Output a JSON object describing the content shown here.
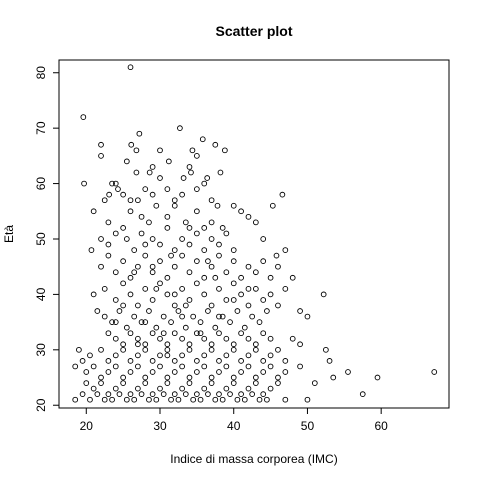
{
  "chart_data": {
    "type": "scatter",
    "title": "Scatter plot",
    "xlabel": "Indice di massa corporea (IMC)",
    "ylabel": "Età",
    "xlim": [
      16.3,
      69.2
    ],
    "ylim": [
      19.5,
      82.3
    ],
    "xticks": [
      20,
      30,
      40,
      50,
      60
    ],
    "yticks": [
      20,
      30,
      40,
      50,
      60,
      70,
      80
    ],
    "grid": false,
    "marker": "open-circle",
    "point_color": "#000000",
    "points": [
      [
        26,
        81
      ],
      [
        19.6,
        72
      ],
      [
        22,
        67
      ],
      [
        27.2,
        69
      ],
      [
        32.7,
        70
      ],
      [
        22,
        65
      ],
      [
        26.1,
        67
      ],
      [
        30,
        66
      ],
      [
        26.8,
        66
      ],
      [
        29,
        63
      ],
      [
        31.2,
        64
      ],
      [
        35.8,
        68
      ],
      [
        34.4,
        66
      ],
      [
        35,
        65
      ],
      [
        37.5,
        67
      ],
      [
        34,
        63
      ],
      [
        38.2,
        62
      ],
      [
        19.7,
        60
      ],
      [
        23.5,
        60
      ],
      [
        24.3,
        59
      ],
      [
        25.5,
        64
      ],
      [
        26.8,
        62
      ],
      [
        28.6,
        62
      ],
      [
        34.2,
        62
      ],
      [
        36.4,
        61
      ],
      [
        38.8,
        66
      ],
      [
        30,
        61
      ],
      [
        33.2,
        61
      ],
      [
        22.5,
        57
      ],
      [
        23.1,
        58
      ],
      [
        24,
        60
      ],
      [
        25,
        58
      ],
      [
        26,
        57
      ],
      [
        27,
        57
      ],
      [
        28,
        59
      ],
      [
        29,
        58
      ],
      [
        31,
        59
      ],
      [
        32,
        57
      ],
      [
        33,
        58
      ],
      [
        35,
        59
      ],
      [
        37,
        57
      ],
      [
        36,
        60
      ],
      [
        37.8,
        56
      ],
      [
        46.6,
        58
      ],
      [
        40,
        56
      ],
      [
        41,
        55
      ],
      [
        21,
        55
      ],
      [
        23,
        53
      ],
      [
        25,
        52
      ],
      [
        26,
        55
      ],
      [
        27.5,
        54
      ],
      [
        28.5,
        53
      ],
      [
        29.5,
        56
      ],
      [
        31,
        54
      ],
      [
        32,
        56
      ],
      [
        33.5,
        53
      ],
      [
        35,
        55
      ],
      [
        36,
        52
      ],
      [
        37,
        53
      ],
      [
        38.5,
        52
      ],
      [
        42,
        54
      ],
      [
        43,
        53
      ],
      [
        45.3,
        56
      ],
      [
        20.7,
        48
      ],
      [
        22,
        50
      ],
      [
        23,
        49
      ],
      [
        24,
        51
      ],
      [
        25.5,
        50
      ],
      [
        26.5,
        48
      ],
      [
        27.5,
        51
      ],
      [
        28,
        49
      ],
      [
        29,
        50
      ],
      [
        30,
        49
      ],
      [
        31,
        52
      ],
      [
        32,
        48
      ],
      [
        33,
        50
      ],
      [
        34,
        49
      ],
      [
        35,
        51
      ],
      [
        36,
        48
      ],
      [
        37,
        50
      ],
      [
        38,
        49
      ],
      [
        39,
        51
      ],
      [
        40,
        48
      ],
      [
        44,
        50
      ],
      [
        45.8,
        47
      ],
      [
        47,
        48
      ],
      [
        22,
        45
      ],
      [
        23,
        47
      ],
      [
        24,
        44
      ],
      [
        25,
        46
      ],
      [
        26,
        43
      ],
      [
        27,
        45
      ],
      [
        28,
        47
      ],
      [
        29,
        44
      ],
      [
        30,
        46
      ],
      [
        31,
        43
      ],
      [
        32,
        45
      ],
      [
        33,
        47
      ],
      [
        34,
        44
      ],
      [
        35,
        46
      ],
      [
        36,
        43
      ],
      [
        37,
        45
      ],
      [
        38,
        47
      ],
      [
        39,
        44
      ],
      [
        40,
        46
      ],
      [
        41,
        43
      ],
      [
        42,
        45
      ],
      [
        43,
        44
      ],
      [
        44,
        46
      ],
      [
        45,
        43
      ],
      [
        46,
        45
      ],
      [
        48,
        43
      ],
      [
        21,
        40
      ],
      [
        22.5,
        41
      ],
      [
        24,
        39
      ],
      [
        25,
        42
      ],
      [
        26,
        40
      ],
      [
        27,
        38
      ],
      [
        28,
        41
      ],
      [
        29,
        39
      ],
      [
        30,
        42
      ],
      [
        31,
        40
      ],
      [
        32,
        38
      ],
      [
        33,
        41
      ],
      [
        34,
        39
      ],
      [
        35,
        42
      ],
      [
        36,
        40
      ],
      [
        37,
        38
      ],
      [
        38,
        41
      ],
      [
        39,
        39
      ],
      [
        40,
        42
      ],
      [
        41,
        40
      ],
      [
        42,
        38
      ],
      [
        43,
        41
      ],
      [
        44,
        39
      ],
      [
        45,
        40
      ],
      [
        46,
        38
      ],
      [
        47,
        41
      ],
      [
        21.5,
        37
      ],
      [
        22.5,
        36
      ],
      [
        23.5,
        35
      ],
      [
        24.5,
        37
      ],
      [
        25.5,
        34
      ],
      [
        26.5,
        36
      ],
      [
        27.5,
        35
      ],
      [
        28.5,
        37
      ],
      [
        29.5,
        34
      ],
      [
        30.5,
        36
      ],
      [
        31.5,
        35
      ],
      [
        32.5,
        37
      ],
      [
        33.5,
        34
      ],
      [
        34.5,
        36
      ],
      [
        35.5,
        35
      ],
      [
        36.5,
        37
      ],
      [
        37.5,
        34
      ],
      [
        38.5,
        36
      ],
      [
        39.5,
        35
      ],
      [
        40.5,
        37
      ],
      [
        41.5,
        34
      ],
      [
        42.5,
        36
      ],
      [
        43.5,
        35
      ],
      [
        44.5,
        37
      ],
      [
        49,
        37
      ],
      [
        50,
        36
      ],
      [
        52.2,
        40
      ],
      [
        23,
        33
      ],
      [
        24,
        32
      ],
      [
        25,
        31
      ],
      [
        26,
        33
      ],
      [
        27,
        32
      ],
      [
        28,
        31
      ],
      [
        29,
        33
      ],
      [
        30,
        32
      ],
      [
        31,
        31
      ],
      [
        32,
        33
      ],
      [
        33,
        32
      ],
      [
        34,
        31
      ],
      [
        35,
        33
      ],
      [
        36,
        32
      ],
      [
        37,
        31
      ],
      [
        38,
        33
      ],
      [
        39,
        32
      ],
      [
        40,
        31
      ],
      [
        41,
        33
      ],
      [
        42,
        32
      ],
      [
        43,
        31
      ],
      [
        44,
        33
      ],
      [
        45,
        32
      ],
      [
        48,
        32
      ],
      [
        49,
        31
      ],
      [
        19,
        30
      ],
      [
        20.5,
        29
      ],
      [
        22,
        30
      ],
      [
        23,
        28
      ],
      [
        24,
        29
      ],
      [
        25,
        30
      ],
      [
        26,
        28
      ],
      [
        27,
        29
      ],
      [
        28,
        30
      ],
      [
        29,
        28
      ],
      [
        30,
        29
      ],
      [
        31,
        30
      ],
      [
        32,
        28
      ],
      [
        33,
        29
      ],
      [
        34,
        30
      ],
      [
        35,
        28
      ],
      [
        36,
        29
      ],
      [
        37,
        30
      ],
      [
        38,
        28
      ],
      [
        39,
        29
      ],
      [
        40,
        30
      ],
      [
        41,
        28
      ],
      [
        42,
        29
      ],
      [
        43,
        30
      ],
      [
        44,
        28
      ],
      [
        45,
        29
      ],
      [
        46,
        30
      ],
      [
        47,
        28
      ],
      [
        52.5,
        30
      ],
      [
        19.5,
        28
      ],
      [
        18.5,
        27
      ],
      [
        20,
        26
      ],
      [
        21,
        27
      ],
      [
        22,
        25
      ],
      [
        23,
        26
      ],
      [
        24,
        27
      ],
      [
        25,
        25
      ],
      [
        26,
        26
      ],
      [
        27,
        27
      ],
      [
        28,
        25
      ],
      [
        29,
        26
      ],
      [
        30,
        27
      ],
      [
        31,
        25
      ],
      [
        32,
        26
      ],
      [
        33,
        27
      ],
      [
        34,
        25
      ],
      [
        35,
        26
      ],
      [
        36,
        27
      ],
      [
        37,
        25
      ],
      [
        38,
        26
      ],
      [
        39,
        27
      ],
      [
        40,
        25
      ],
      [
        41,
        26
      ],
      [
        42,
        27
      ],
      [
        43,
        25
      ],
      [
        44,
        26
      ],
      [
        45,
        27
      ],
      [
        46,
        25
      ],
      [
        47,
        26
      ],
      [
        49,
        27
      ],
      [
        53,
        28
      ],
      [
        55.5,
        26
      ],
      [
        59.5,
        25
      ],
      [
        67.2,
        26
      ],
      [
        20,
        24
      ],
      [
        21,
        23
      ],
      [
        22,
        24
      ],
      [
        23,
        22
      ],
      [
        24,
        23
      ],
      [
        25,
        24
      ],
      [
        26,
        22
      ],
      [
        27,
        23
      ],
      [
        28,
        24
      ],
      [
        29,
        22
      ],
      [
        30,
        23
      ],
      [
        31,
        24
      ],
      [
        32,
        22
      ],
      [
        33,
        23
      ],
      [
        34,
        24
      ],
      [
        35,
        22
      ],
      [
        36,
        23
      ],
      [
        37,
        24
      ],
      [
        38,
        22
      ],
      [
        39,
        23
      ],
      [
        40,
        24
      ],
      [
        41,
        22
      ],
      [
        42,
        23
      ],
      [
        43,
        24
      ],
      [
        44,
        22
      ],
      [
        45,
        23
      ],
      [
        46,
        24
      ],
      [
        51,
        24
      ],
      [
        53.5,
        25
      ],
      [
        18.5,
        21
      ],
      [
        19.5,
        22
      ],
      [
        20.5,
        21
      ],
      [
        21.5,
        22
      ],
      [
        22.5,
        21
      ],
      [
        23.5,
        21
      ],
      [
        24.5,
        22
      ],
      [
        25.5,
        21
      ],
      [
        26.5,
        21
      ],
      [
        27.5,
        22
      ],
      [
        28.5,
        21
      ],
      [
        29.5,
        21
      ],
      [
        30.5,
        22
      ],
      [
        31.5,
        21
      ],
      [
        32.5,
        21
      ],
      [
        33.5,
        22
      ],
      [
        34.5,
        21
      ],
      [
        35.5,
        21
      ],
      [
        36.5,
        22
      ],
      [
        37.5,
        21
      ],
      [
        38.5,
        21
      ],
      [
        39.5,
        22
      ],
      [
        40.5,
        21
      ],
      [
        41.5,
        21
      ],
      [
        42.5,
        22
      ],
      [
        43.5,
        21
      ],
      [
        44.5,
        21
      ],
      [
        47,
        21
      ],
      [
        50,
        21
      ],
      [
        57.5,
        22
      ],
      [
        25,
        38
      ],
      [
        26.5,
        44
      ],
      [
        29.5,
        41
      ],
      [
        31.5,
        47
      ],
      [
        33,
        36
      ],
      [
        35.5,
        33
      ],
      [
        37.5,
        43
      ],
      [
        40,
        39
      ],
      [
        42,
        41
      ],
      [
        30.5,
        33
      ],
      [
        28,
        35
      ],
      [
        34,
        52
      ],
      [
        36.5,
        46
      ],
      [
        32,
        40
      ],
      [
        27,
        31
      ],
      [
        24,
        35
      ],
      [
        38,
        36
      ],
      [
        29,
        45
      ],
      [
        33.5,
        38
      ],
      [
        31,
        29
      ]
    ]
  }
}
